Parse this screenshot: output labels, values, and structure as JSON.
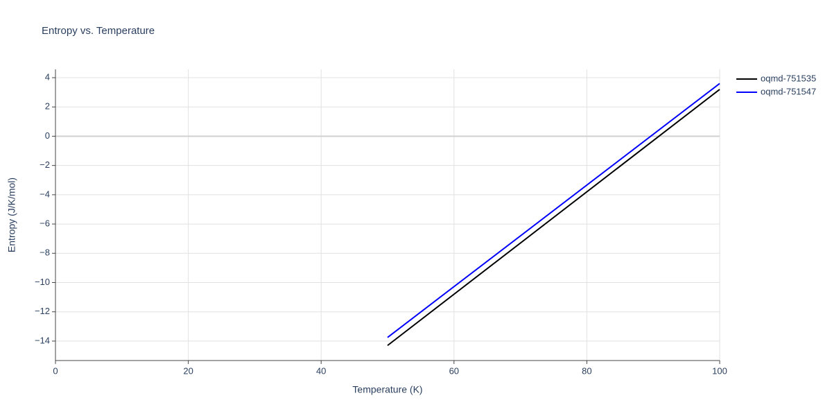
{
  "chart_data": {
    "type": "line",
    "title": "Entropy vs. Temperature",
    "xlabel": "Temperature (K)",
    "ylabel": "Entropy (J/K/mol)",
    "x": [
      50,
      100
    ],
    "series": [
      {
        "name": "oqmd-751535",
        "color": "#000000",
        "values": [
          -14.3,
          3.2
        ]
      },
      {
        "name": "oqmd-751547",
        "color": "#0000ff",
        "values": [
          -13.75,
          3.6
        ]
      }
    ],
    "xlim": [
      0,
      100
    ],
    "xticks": [
      0,
      20,
      40,
      60,
      80,
      100
    ],
    "ylim": [
      -15.33,
      4.57
    ],
    "yticks": [
      {
        "value": -14,
        "label": "−14"
      },
      {
        "value": -12,
        "label": "−12"
      },
      {
        "value": -10,
        "label": "−10"
      },
      {
        "value": -8,
        "label": "−8"
      },
      {
        "value": -6,
        "label": "−6"
      },
      {
        "value": -4,
        "label": "−4"
      },
      {
        "value": -2,
        "label": "−2"
      },
      0,
      2,
      4
    ],
    "grid": true,
    "legend": "right"
  }
}
